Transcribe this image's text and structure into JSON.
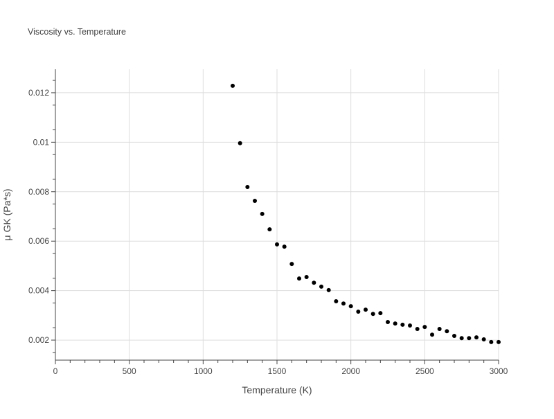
{
  "chart_data": {
    "type": "scatter",
    "title": "Viscosity vs. Temperature",
    "xlabel": "Temperature (K)",
    "ylabel": "μ GK (Pa*s)",
    "xlim": [
      0,
      3000
    ],
    "ylim": [
      0.00119,
      0.01295
    ],
    "xticks": [
      0,
      500,
      1000,
      1500,
      2000,
      2500,
      3000
    ],
    "xtick_labels": [
      "0",
      "500",
      "1000",
      "1500",
      "2000",
      "2500",
      "3000"
    ],
    "yticks": [
      0.002,
      0.004,
      0.006,
      0.008,
      0.01,
      0.012
    ],
    "ytick_labels": [
      "0.002",
      "0.004",
      "0.006",
      "0.008",
      "0.01",
      "0.012"
    ],
    "grid": true,
    "marker_color": "#000000",
    "x": [
      1200,
      1250,
      1300,
      1350,
      1400,
      1450,
      1500,
      1550,
      1600,
      1650,
      1700,
      1750,
      1800,
      1850,
      1900,
      1950,
      2000,
      2050,
      2100,
      2150,
      2200,
      2250,
      2300,
      2350,
      2400,
      2450,
      2500,
      2550,
      2600,
      2650,
      2700,
      2750,
      2800,
      2850,
      2900,
      2950,
      3000
    ],
    "y": [
      0.01228,
      0.00996,
      0.00819,
      0.00763,
      0.0071,
      0.00648,
      0.00587,
      0.00578,
      0.00508,
      0.00449,
      0.00455,
      0.00432,
      0.00416,
      0.00402,
      0.00357,
      0.00348,
      0.00337,
      0.00315,
      0.00323,
      0.00306,
      0.00309,
      0.00273,
      0.00267,
      0.00262,
      0.00259,
      0.00245,
      0.00253,
      0.00222,
      0.00245,
      0.00236,
      0.00217,
      0.00208,
      0.00208,
      0.00211,
      0.00203,
      0.00192,
      0.00192
    ]
  }
}
